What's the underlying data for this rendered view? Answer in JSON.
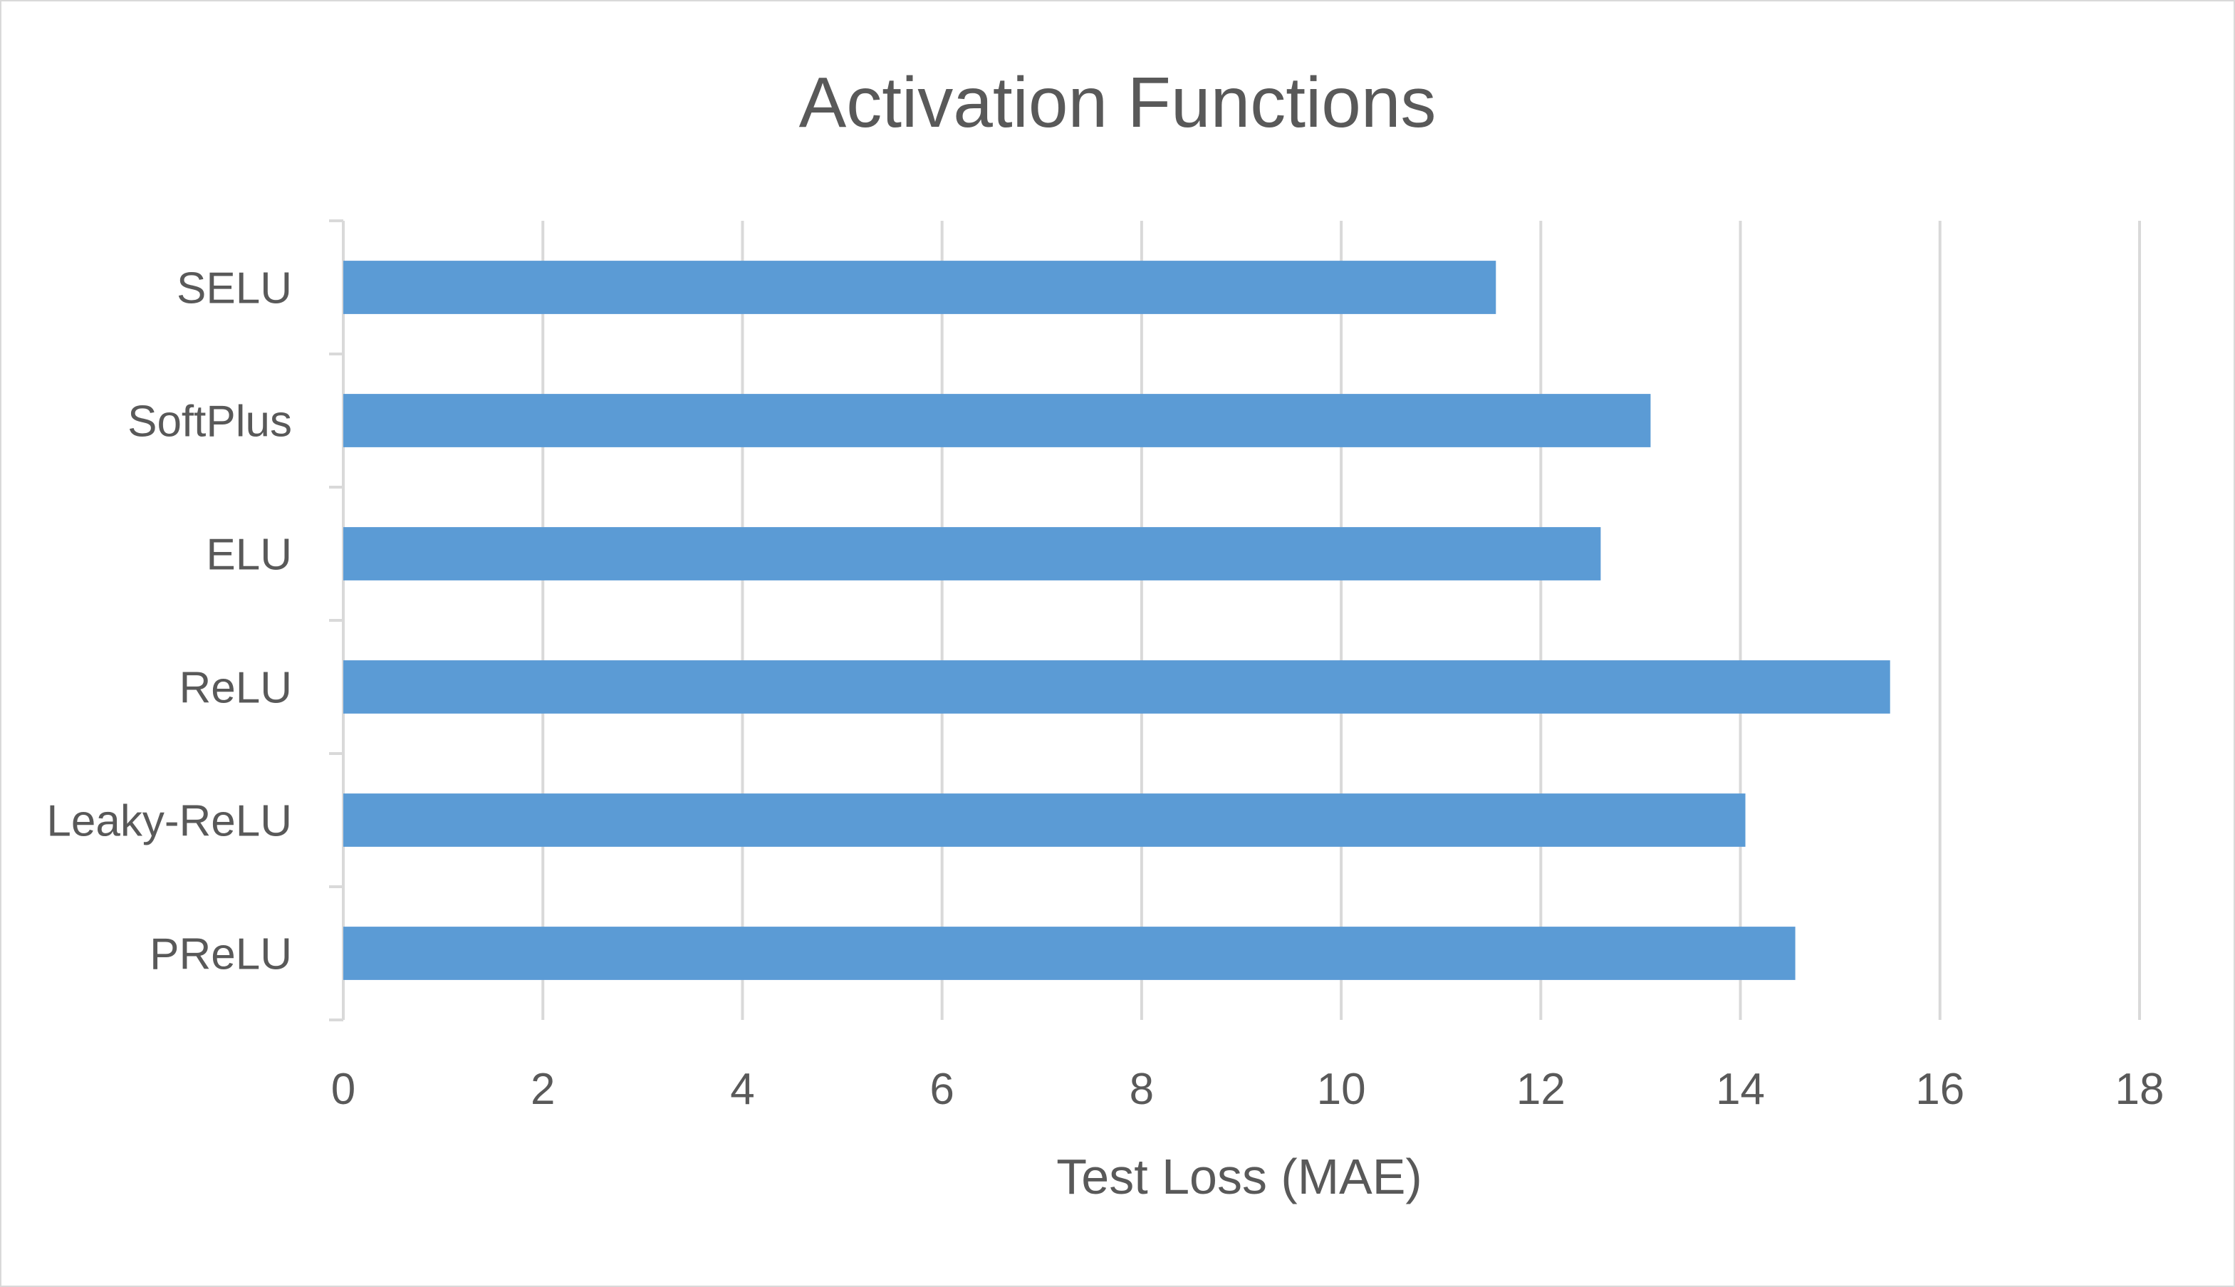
{
  "chart_data": {
    "type": "bar",
    "orientation": "horizontal",
    "title": "Activation Functions",
    "xlabel": "Test Loss (MAE)",
    "ylabel": "",
    "categories": [
      "SELU",
      "SoftPlus",
      "ELU",
      "ReLU",
      "Leaky-ReLU",
      "PReLU"
    ],
    "values": [
      11.55,
      13.1,
      12.6,
      15.5,
      14.05,
      14.55
    ],
    "xlim": [
      0,
      18
    ],
    "xticks": [
      "0",
      "2",
      "4",
      "6",
      "8",
      "10",
      "12",
      "14",
      "16",
      "18"
    ],
    "grid": true,
    "legend": "none",
    "bar_color": "#5b9bd5",
    "grid_color": "#d9d9d9",
    "text_color": "#595959"
  }
}
